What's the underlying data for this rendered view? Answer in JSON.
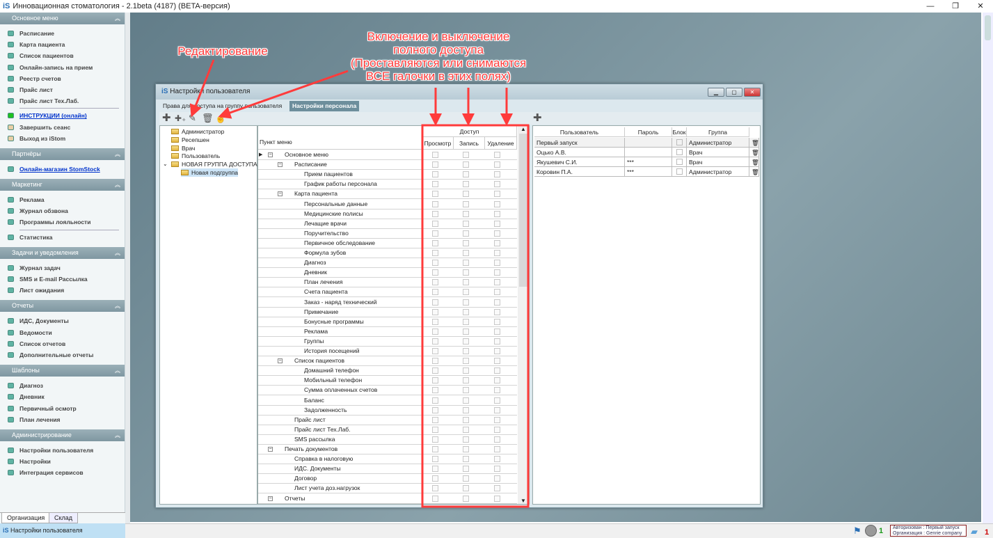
{
  "app": {
    "title": "Инновационная стоматология - 2.1beta (4187) (BETA-версия)",
    "logo": "iS"
  },
  "sidebar": {
    "sections": [
      {
        "title": "Основное меню",
        "items": [
          {
            "label": "Расписание"
          },
          {
            "label": "Карта пациента"
          },
          {
            "label": "Список пациентов"
          },
          {
            "label": "Онлайн-запись на прием"
          },
          {
            "label": "Реестр счетов"
          },
          {
            "label": "Прайс лист"
          },
          {
            "label": "Прайс лист Тех.Лаб."
          },
          {
            "label": "ИНСТРУКЦИИ (онлайн)",
            "link": true,
            "color": "#1ec21e"
          },
          {
            "label": "Завершить сеанс",
            "color": "#e8cfa6"
          },
          {
            "label": "Выход из iStom",
            "color": "#e8cfa6"
          }
        ]
      },
      {
        "title": "Партнёры",
        "items": [
          {
            "label": "Онлайн-магазин StomStock",
            "link": true
          }
        ]
      },
      {
        "title": "Маркетинг",
        "items": [
          {
            "label": "Реклама"
          },
          {
            "label": "Журнал обзвона"
          },
          {
            "label": "Программы лояльности"
          },
          {
            "label": "Статистика"
          }
        ]
      },
      {
        "title": "Задачи и уведомления",
        "items": [
          {
            "label": "Журнал задач"
          },
          {
            "label": "SMS и E-mail Рассылка"
          },
          {
            "label": "Лист ожидания"
          }
        ]
      },
      {
        "title": "Отчеты",
        "items": [
          {
            "label": "ИДС, Документы"
          },
          {
            "label": "Ведомости"
          },
          {
            "label": "Список отчетов"
          },
          {
            "label": "Дополнительные отчеты"
          }
        ]
      },
      {
        "title": "Шаблоны",
        "items": [
          {
            "label": "Диагноз"
          },
          {
            "label": "Дневник"
          },
          {
            "label": "Первичный осмотр"
          },
          {
            "label": "План лечения"
          }
        ]
      },
      {
        "title": "Администрирование",
        "items": [
          {
            "label": "Настройки пользователя"
          },
          {
            "label": "Настройки"
          },
          {
            "label": "Интеграция сервисов"
          }
        ]
      }
    ],
    "bottom_tabs": [
      "Организация",
      "Склад"
    ]
  },
  "status": {
    "window": "Настройки пользователя",
    "auth": "Авторизован : Первый запуск",
    "org": "Организация : Genrie company",
    "users_count": "1",
    "notif_count": "1"
  },
  "dialog": {
    "title": "Настройки пользователя",
    "tabs": [
      "Права для доступа на группу пользователя",
      "Настройки персонала"
    ],
    "groups": [
      "Администратор",
      "Ресепшен",
      "Врач",
      "Пользователь",
      "НОВАЯ ГРУППА ДОСТУПА",
      "Новая подгруппа"
    ],
    "grid": {
      "col_menu": "Пункт меню",
      "col_access": "Доступ",
      "col_view": "Просмотр",
      "col_write": "Запись",
      "col_delete": "Удаление",
      "rows": [
        {
          "label": "Основное меню",
          "level": 0,
          "exp": true
        },
        {
          "label": "Расписание",
          "level": 1,
          "exp": true
        },
        {
          "label": "Прием пациентов",
          "level": 2
        },
        {
          "label": "График работы персонала",
          "level": 2
        },
        {
          "label": "Карта пациента",
          "level": 1,
          "exp": true
        },
        {
          "label": "Персональные данные",
          "level": 2
        },
        {
          "label": "Медицинские полисы",
          "level": 2
        },
        {
          "label": "Лечащие врачи",
          "level": 2
        },
        {
          "label": "Поручительство",
          "level": 2
        },
        {
          "label": "Первичное обследование",
          "level": 2
        },
        {
          "label": "Формула зубов",
          "level": 2
        },
        {
          "label": "Диагноз",
          "level": 2
        },
        {
          "label": "Дневник",
          "level": 2
        },
        {
          "label": "План лечения",
          "level": 2
        },
        {
          "label": "Счета пациента",
          "level": 2
        },
        {
          "label": "Заказ - наряд технический",
          "level": 2
        },
        {
          "label": "Примечание",
          "level": 2
        },
        {
          "label": "Бонусные программы",
          "level": 2
        },
        {
          "label": "Реклама",
          "level": 2
        },
        {
          "label": "Группы",
          "level": 2
        },
        {
          "label": "История посещений",
          "level": 2
        },
        {
          "label": "Список пациентов",
          "level": 1,
          "exp": true
        },
        {
          "label": "Домашний телефон",
          "level": 2
        },
        {
          "label": "Мобильный телефон",
          "level": 2
        },
        {
          "label": "Сумма оплаченных счетов",
          "level": 2
        },
        {
          "label": "Баланс",
          "level": 2
        },
        {
          "label": "Задолженность",
          "level": 2
        },
        {
          "label": "Прайс лист",
          "level": 1
        },
        {
          "label": "Прайс лист Тех.Лаб.",
          "level": 1
        },
        {
          "label": "SMS рассылка",
          "level": 1
        },
        {
          "label": "Печать документов",
          "level": 0,
          "exp": true
        },
        {
          "label": "Справка в налоговую",
          "level": 1
        },
        {
          "label": "ИДС. Документы",
          "level": 1
        },
        {
          "label": "Договор",
          "level": 1
        },
        {
          "label": "Лист учета доз.нагрузок",
          "level": 1
        },
        {
          "label": "Отчеты",
          "level": 0,
          "exp": true
        }
      ]
    },
    "users": {
      "headers": [
        "Пользователь",
        "Пароль",
        "Блок",
        "Группа"
      ],
      "rows": [
        {
          "name": "Первый запуск",
          "password": "",
          "group": "Администратор"
        },
        {
          "name": "Оцько А.В.",
          "password": "",
          "group": "Врач"
        },
        {
          "name": "Якушевич С.И.",
          "password": "***",
          "group": "Врач"
        },
        {
          "name": "Коровин П.А.",
          "password": "***",
          "group": "Администратор"
        }
      ]
    }
  },
  "annotations": {
    "edit": "Редактирование",
    "full_access": [
      "Включение и выключение",
      "полного доступа",
      "(Проставляются или снимаются",
      "ВСЕ галочки в этих полях)"
    ]
  },
  "colors": {
    "annotation": "#ff3b3b",
    "accent": "#2a6fb5"
  }
}
